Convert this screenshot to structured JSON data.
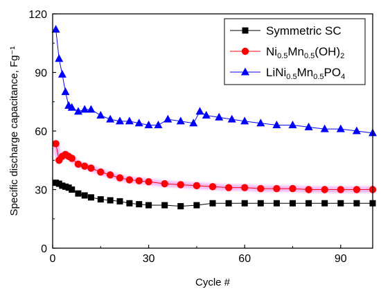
{
  "chart_data": {
    "type": "scatter",
    "xlabel": "Cycle #",
    "ylabel": "Specific discharge capacitance, Fg⁻¹",
    "xlim": [
      0,
      100
    ],
    "ylim": [
      0,
      120
    ],
    "x_ticks": [
      0,
      30,
      60,
      90
    ],
    "y_ticks": [
      0,
      30,
      60,
      90,
      120
    ],
    "x_tick_labels": [
      "0",
      "30",
      "60",
      "90"
    ],
    "y_tick_labels": [
      "0",
      "30",
      "60",
      "90",
      "120"
    ],
    "grid": false,
    "legend_position": "top-right",
    "series": [
      {
        "name": "Symmetric SC",
        "color": "#000000",
        "marker": "square",
        "x": [
          1,
          2,
          3,
          4,
          5,
          6,
          8,
          10,
          12,
          15,
          18,
          21,
          24,
          27,
          30,
          35,
          40,
          45,
          50,
          55,
          60,
          65,
          70,
          75,
          80,
          85,
          90,
          95,
          100
        ],
        "y": [
          33.5,
          33,
          32,
          31.5,
          31,
          30,
          28,
          27,
          26,
          25,
          24.5,
          24,
          23,
          22.5,
          22,
          22,
          21.5,
          22,
          23,
          23,
          23,
          23,
          23,
          23,
          23,
          23,
          23,
          23,
          23
        ]
      },
      {
        "name": "Ni<sub>0.5</sub>Mn<sub>0.5</sub>(OH)<sub>2</sub>",
        "color": "#ff0000",
        "marker": "circle",
        "x": [
          1,
          2,
          3,
          4,
          5,
          6,
          8,
          10,
          12,
          15,
          18,
          21,
          24,
          27,
          30,
          35,
          40,
          45,
          50,
          55,
          60,
          65,
          70,
          75,
          80,
          85,
          90,
          95,
          100
        ],
        "y": [
          53.5,
          45,
          47,
          48,
          47,
          46,
          43,
          42,
          41,
          39,
          37.5,
          36,
          35,
          34.5,
          34,
          33,
          32.5,
          32,
          31.5,
          31,
          31,
          30.5,
          30.5,
          30.5,
          30,
          30,
          30,
          30,
          30
        ]
      },
      {
        "name": "LiNi<sub>0.5</sub>Mn<sub>0.5</sub>PO<sub>4</sub>",
        "color": "#0000ff",
        "marker": "triangle",
        "x": [
          1,
          2,
          3,
          4,
          5,
          6,
          8,
          10,
          12,
          15,
          18,
          21,
          24,
          27,
          30,
          33,
          36,
          40,
          44,
          46,
          48,
          52,
          56,
          60,
          65,
          70,
          75,
          80,
          85,
          90,
          95,
          100
        ],
        "y": [
          112,
          97,
          89,
          80,
          73,
          72,
          70,
          71,
          71,
          68,
          66,
          65,
          65,
          64,
          63,
          63,
          66,
          65,
          64,
          70,
          68,
          67,
          66,
          65,
          64,
          63,
          63,
          62,
          61,
          61,
          60,
          59
        ]
      }
    ]
  }
}
